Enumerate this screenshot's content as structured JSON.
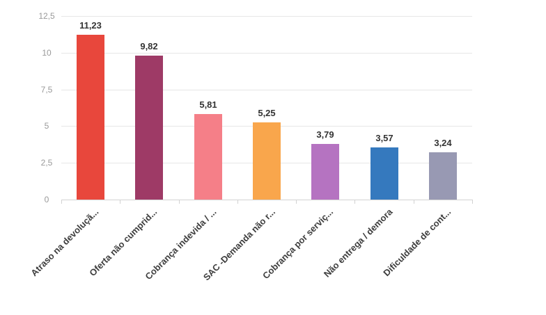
{
  "chart": {
    "title": "",
    "colors": {
      "background": "#ffffff",
      "grid_line": "#e6e6e6",
      "axis_line": "#d2d2d2",
      "tick": "#d2d2d2",
      "value_label": "#333333",
      "category_label": "#3d3d3d",
      "ytick_label": "#999999"
    }
  },
  "chart_data": {
    "type": "bar",
    "title": "",
    "xlabel": "",
    "ylabel": "",
    "legend": "none",
    "grid": "horizontal",
    "categories": [
      "Atraso na devoluçã...",
      "Oferta não cumprid...",
      "Cobrança indevida / ...",
      "SAC -Demanda não r...",
      "Cobrança por serviç...",
      "Não entrega / demora",
      "Dificuldade de cont..."
    ],
    "values": [
      11.23,
      9.82,
      5.81,
      5.25,
      3.79,
      3.57,
      3.24
    ],
    "value_labels": [
      "11,23",
      "9,82",
      "5,81",
      "5,25",
      "3,79",
      "3,57",
      "3,24"
    ],
    "bar_colors": [
      "#e8473c",
      "#9e3a66",
      "#f57f88",
      "#f9a64c",
      "#b573c1",
      "#3579be",
      "#9899b3"
    ],
    "ylim": [
      0,
      12.5
    ],
    "yticks": [
      0,
      2.5,
      5,
      7.5,
      10,
      12.5
    ],
    "ytick_labels": [
      "0",
      "2,5",
      "5",
      "7,5",
      "10",
      "12,5"
    ]
  }
}
